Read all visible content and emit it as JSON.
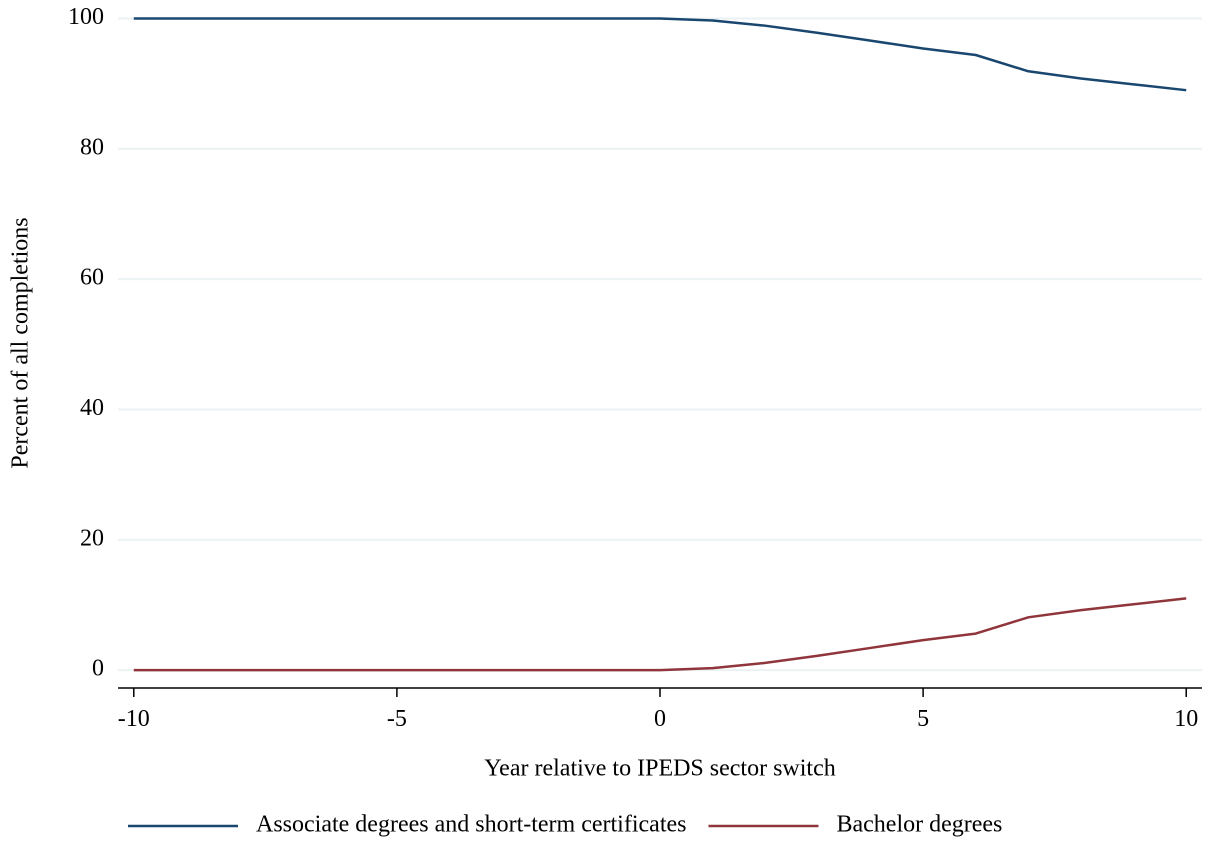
{
  "chart_data": {
    "type": "line",
    "x_label": "Year relative to IPEDS sector switch",
    "y_label": "Percent of all completions",
    "x": [
      -10,
      -9,
      -8,
      -7,
      -6,
      -5,
      -4,
      -3,
      -2,
      -1,
      0,
      1,
      2,
      3,
      4,
      5,
      6,
      7,
      8,
      9,
      10
    ],
    "series": [
      {
        "name": "Associate degrees and short-term certificates",
        "color": "#1a476f",
        "values": [
          100,
          100,
          100,
          100,
          100,
          100,
          100,
          100,
          100,
          100,
          100,
          99.7,
          98.9,
          97.8,
          96.6,
          95.4,
          94.4,
          91.9,
          90.8,
          89.9,
          89.0
        ]
      },
      {
        "name": "Bachelor degrees",
        "color": "#90353b",
        "values": [
          0,
          0,
          0,
          0,
          0,
          0,
          0,
          0,
          0,
          0,
          0,
          0.3,
          1.1,
          2.2,
          3.4,
          4.6,
          5.6,
          8.1,
          9.2,
          10.1,
          11.0
        ]
      }
    ],
    "xlim": [
      -10.3,
      10.3
    ],
    "ylim": [
      -2.75,
      101
    ],
    "xticks": [
      -10,
      -5,
      0,
      5,
      10
    ],
    "yticks": [
      0,
      20,
      40,
      60,
      80,
      100
    ],
    "grid": true,
    "legend_position": "bottom"
  }
}
